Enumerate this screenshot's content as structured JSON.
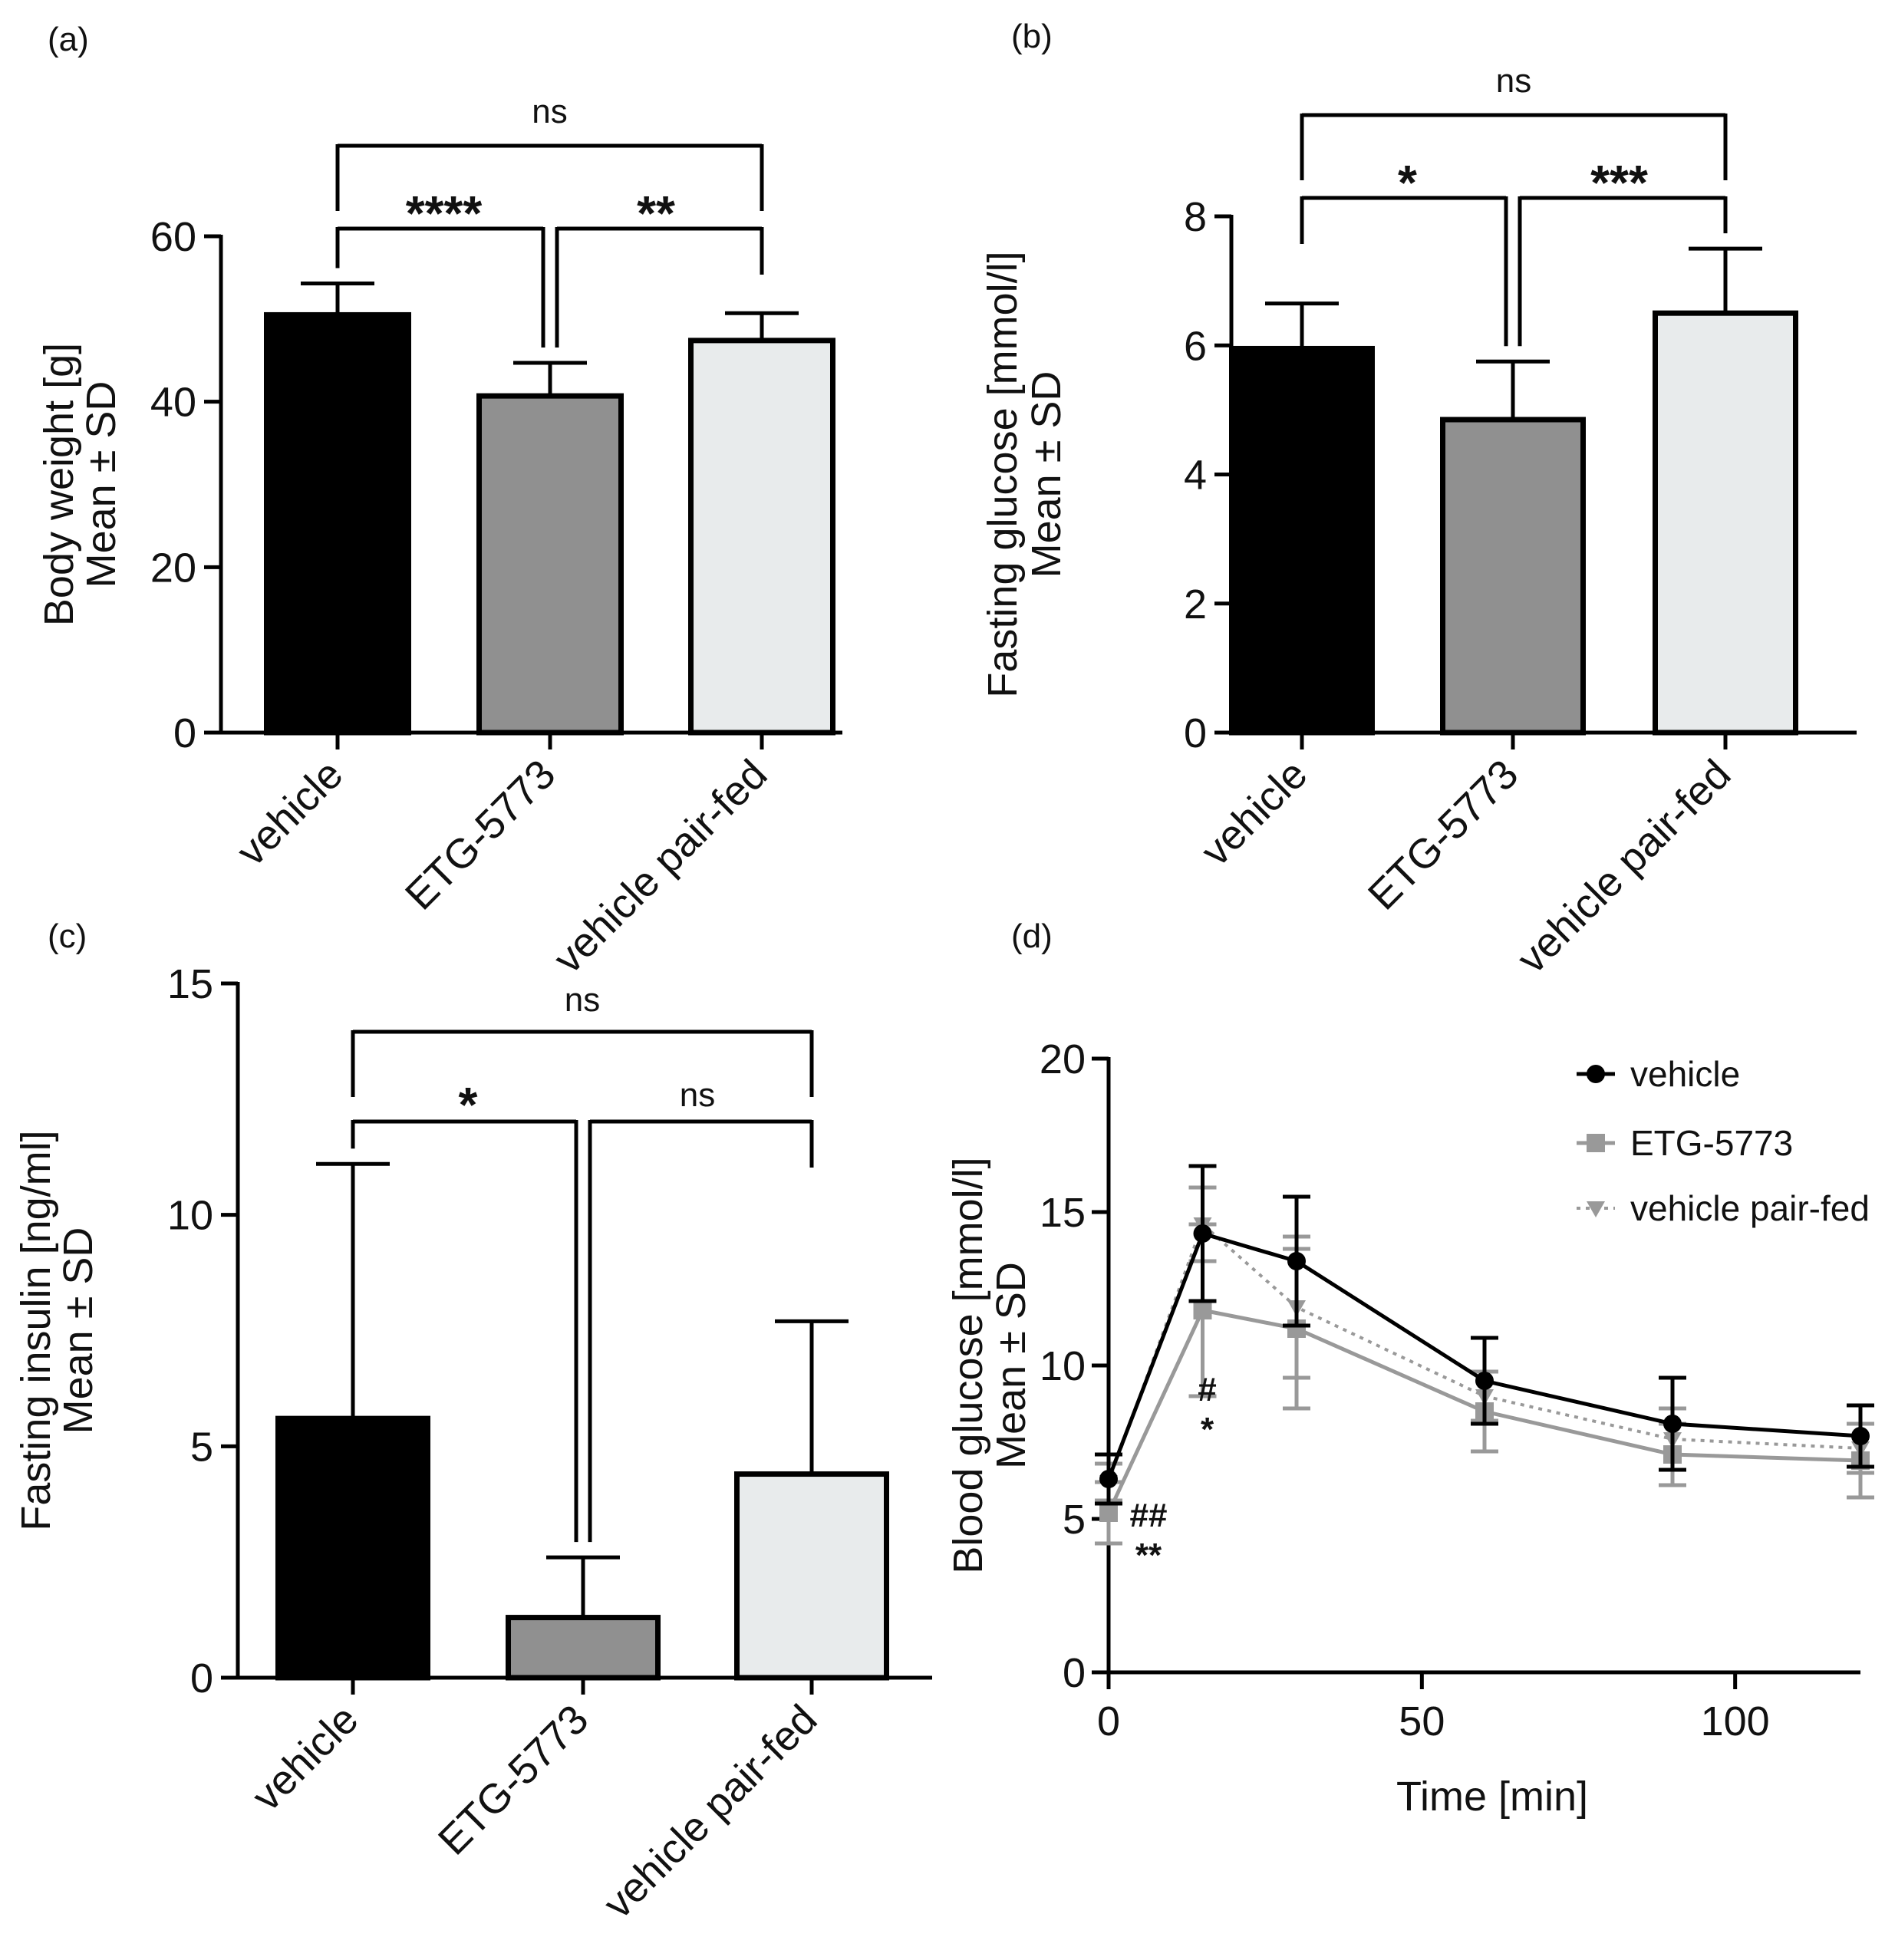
{
  "chart_data": [
    {
      "panel": "(a)",
      "type": "bar",
      "categories": [
        "vehicle",
        "ETG-5773",
        "vehicle pair-fed"
      ],
      "values": [
        50.5,
        40.7,
        47.4
      ],
      "errors": [
        3.8,
        4.0,
        3.3
      ],
      "colors": [
        "#000000",
        "#909090",
        "#e8ebec"
      ],
      "ylabel": [
        "Body weight [g]",
        "Mean ± SD"
      ],
      "ylim": [
        0,
        60
      ],
      "yticks": [
        0,
        20,
        40,
        60
      ],
      "comparisons": [
        {
          "from": "vehicle",
          "to": "ETG-5773",
          "label": "****"
        },
        {
          "from": "ETG-5773",
          "to": "vehicle pair-fed",
          "label": "**"
        },
        {
          "from": "vehicle",
          "to": "vehicle pair-fed",
          "label": "ns"
        }
      ]
    },
    {
      "panel": "(b)",
      "type": "bar",
      "categories": [
        "vehicle",
        "ETG-5773",
        "vehicle pair-fed"
      ],
      "values": [
        5.95,
        4.85,
        6.5
      ],
      "errors": [
        0.7,
        0.9,
        1.0
      ],
      "colors": [
        "#000000",
        "#909090",
        "#e8ebec"
      ],
      "ylabel": [
        "Fasting glucose  [mmol/l]",
        "Mean ± SD"
      ],
      "ylim": [
        0,
        8
      ],
      "yticks": [
        0,
        2,
        4,
        6,
        8
      ],
      "comparisons": [
        {
          "from": "vehicle",
          "to": "ETG-5773",
          "label": "*"
        },
        {
          "from": "ETG-5773",
          "to": "vehicle pair-fed",
          "label": "***"
        },
        {
          "from": "vehicle",
          "to": "vehicle pair-fed",
          "label": "ns"
        }
      ]
    },
    {
      "panel": "(c)",
      "type": "bar",
      "categories": [
        "vehicle",
        "ETG-5773",
        "vehicle pair-fed"
      ],
      "values": [
        5.6,
        1.3,
        4.4
      ],
      "errors": [
        5.5,
        1.3,
        3.3
      ],
      "colors": [
        "#000000",
        "#909090",
        "#e8ebec"
      ],
      "ylabel": [
        "Fasting insulin [ng/ml]",
        "Mean ± SD"
      ],
      "ylim": [
        0,
        15
      ],
      "yticks": [
        0,
        5,
        10,
        15
      ],
      "comparisons": [
        {
          "from": "vehicle",
          "to": "ETG-5773",
          "label": "*"
        },
        {
          "from": "ETG-5773",
          "to": "vehicle pair-fed",
          "label": "ns"
        },
        {
          "from": "vehicle",
          "to": "vehicle pair-fed",
          "label": "ns"
        }
      ]
    },
    {
      "panel": "(d)",
      "type": "line",
      "x": [
        0,
        15,
        30,
        60,
        90,
        120
      ],
      "xlabel": "Time [min]",
      "ylabel": [
        "Blood glucose [mmol/l]",
        "Mean ± SD"
      ],
      "xlim": [
        0,
        120
      ],
      "ylim": [
        0,
        20
      ],
      "xticks": [
        0,
        50,
        100
      ],
      "yticks": [
        0,
        5,
        10,
        15,
        20
      ],
      "legend_position": "top-right",
      "series": [
        {
          "name": "vehicle",
          "values": [
            6.3,
            14.3,
            13.4,
            9.5,
            8.1,
            7.7
          ],
          "errors": [
            0.8,
            2.2,
            2.1,
            1.4,
            1.5,
            1.0
          ],
          "color": "#000000",
          "marker": "circle",
          "dash": "solid"
        },
        {
          "name": "ETG-5773",
          "values": [
            5.2,
            11.8,
            11.2,
            8.5,
            7.1,
            6.9
          ],
          "errors": [
            1.0,
            2.8,
            2.6,
            1.3,
            1.0,
            1.2
          ],
          "color": "#999999",
          "marker": "square",
          "dash": "solid"
        },
        {
          "name": "vehicle pair-fed",
          "values": [
            6.2,
            14.6,
            11.9,
            9.0,
            7.6,
            7.3
          ],
          "errors": [
            0.6,
            1.2,
            2.3,
            0.8,
            1.0,
            0.8
          ],
          "color": "#999999",
          "marker": "triangle-down",
          "dash": "dotted"
        }
      ],
      "annotations": [
        {
          "x": 15,
          "text": "#",
          "row": 1
        },
        {
          "x": 15,
          "text": "*",
          "row": 2
        },
        {
          "x": 0,
          "text": "##",
          "row": 1
        },
        {
          "x": 0,
          "text": "**",
          "row": 2
        }
      ]
    }
  ]
}
